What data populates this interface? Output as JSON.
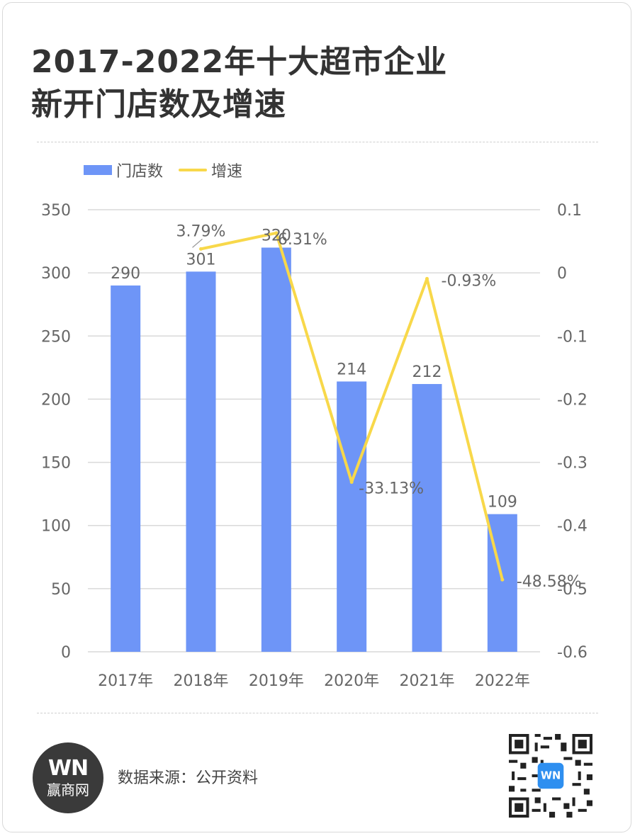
{
  "title_lines": [
    "2017-2022年十大超市企业",
    "新开门店数及增速"
  ],
  "legend": {
    "bar_label": "门店数",
    "line_label": "增速"
  },
  "colors": {
    "bar": "#6e95f7",
    "line": "#f8d84a",
    "text": "#666666",
    "grid": "#d9d9d9"
  },
  "chart_data": {
    "type": "bar",
    "categories": [
      "2017年",
      "2018年",
      "2019年",
      "2020年",
      "2021年",
      "2022年"
    ],
    "series": [
      {
        "name": "门店数",
        "type": "bar",
        "axis": "left",
        "values": [
          290,
          301,
          320,
          214,
          212,
          109
        ]
      },
      {
        "name": "增速",
        "type": "line",
        "axis": "right",
        "values": [
          null,
          0.0379,
          0.0631,
          -0.3313,
          -0.0093,
          -0.4858
        ]
      }
    ],
    "bar_labels": [
      "290",
      "301",
      "320",
      "214",
      "212",
      "109"
    ],
    "line_labels": [
      "",
      "3.79%",
      "6.31%",
      "-33.13%",
      "-0.93%",
      "-48.58%"
    ],
    "y_left": {
      "ylim": [
        0,
        350
      ],
      "ticks": [
        0,
        50,
        100,
        150,
        200,
        250,
        300,
        350
      ]
    },
    "y_right": {
      "ylim": [
        -0.6,
        0.1
      ],
      "ticks": [
        "0.1",
        "0",
        "-0.1",
        "-0.2",
        "-0.3",
        "-0.4",
        "-0.5",
        "-0.6"
      ]
    },
    "legend_position": "top-left",
    "grid": true
  },
  "footer": {
    "logo_mark": "WN",
    "logo_name": "赢商网",
    "source": "数据来源：公开资料"
  },
  "qr_icon": "qr-code-icon"
}
